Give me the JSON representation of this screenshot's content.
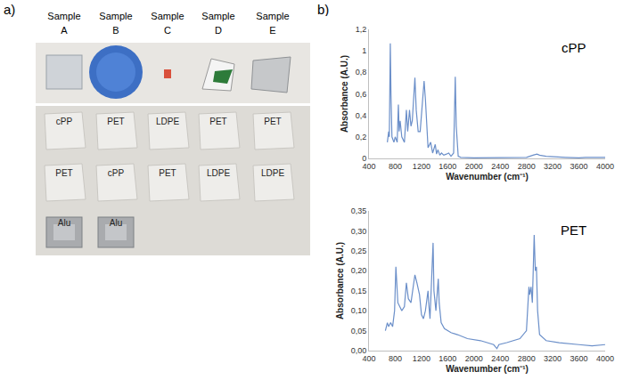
{
  "photo": {
    "panel": "a)",
    "samples": [
      {
        "header": "Sample",
        "id": "A",
        "items": [
          "cPP",
          "PET",
          "Alu"
        ]
      },
      {
        "header": "Sample",
        "id": "B",
        "items": [
          "PET",
          "cPP",
          "Alu"
        ]
      },
      {
        "header": "Sample",
        "id": "C",
        "items": [
          "LDPE",
          "PET"
        ]
      },
      {
        "header": "Sample",
        "id": "D",
        "items": [
          "PET",
          "LDPE"
        ]
      },
      {
        "header": "Sample",
        "id": "E",
        "items": [
          "PET",
          "LDPE"
        ]
      }
    ]
  },
  "panel_b": "b)",
  "chart_data": [
    {
      "type": "line",
      "annotation": "cPP",
      "color": "#6b8fc9",
      "grid": false,
      "x_label": "Wavenumber (cm⁻¹)",
      "y_label": "Absorbance (A.U.)",
      "x": [
        680,
        700,
        710,
        725,
        735,
        750,
        780,
        800,
        830,
        848,
        860,
        875,
        900,
        940,
        970,
        990,
        1018,
        1040,
        1060,
        1080,
        1100,
        1120,
        1150,
        1180,
        1210,
        1240,
        1260,
        1280,
        1300,
        1340,
        1370,
        1410,
        1430,
        1450,
        1480,
        1505,
        1540,
        1580,
        1615,
        1650,
        1690,
        1715,
        1730,
        1760,
        1800,
        2000,
        2400,
        2800,
        2900,
        2960,
        3000,
        3100,
        3400,
        3600,
        3700,
        4000
      ],
      "values": [
        0.15,
        0.25,
        0.2,
        1.07,
        0.6,
        0.2,
        0.15,
        0.2,
        0.15,
        0.5,
        0.25,
        0.35,
        0.2,
        0.15,
        0.45,
        0.25,
        0.45,
        0.3,
        0.35,
        0.55,
        0.75,
        0.45,
        0.25,
        0.25,
        0.5,
        0.72,
        0.55,
        0.3,
        0.1,
        0.15,
        0.05,
        0.13,
        0.04,
        0.08,
        0.03,
        0.05,
        0.03,
        0.04,
        0.05,
        0.02,
        0.05,
        0.76,
        0.3,
        0.02,
        0.01,
        0.005,
        0.005,
        0.01,
        0.03,
        0.04,
        0.03,
        0.02,
        0.01,
        0.005,
        0.01,
        0.01
      ],
      "xlim": [
        400,
        4000
      ],
      "xticks": [
        400,
        800,
        1200,
        1600,
        2000,
        2400,
        2800,
        3200,
        3600,
        4000
      ],
      "ylim": [
        0,
        1.2
      ],
      "yticks": [
        0,
        {
          "value": 0.2,
          "label": "0,2"
        },
        {
          "value": 0.4,
          "label": "0,4"
        },
        {
          "value": 0.6,
          "label": "0,6"
        },
        {
          "value": 0.8,
          "label": "0,8"
        },
        1,
        {
          "value": 1.2,
          "label": "1,2"
        }
      ]
    },
    {
      "type": "line",
      "annotation": "PET",
      "color": "#6b8fc9",
      "grid": false,
      "x_label": "Wavenumber (cm⁻¹)",
      "y_label": "Absorbance (A.U.)",
      "x": [
        650,
        680,
        700,
        730,
        760,
        790,
        810,
        830,
        840,
        900,
        940,
        970,
        1000,
        1040,
        1100,
        1130,
        1150,
        1170,
        1200,
        1230,
        1260,
        1300,
        1310,
        1330,
        1377,
        1390,
        1420,
        1456,
        1470,
        1500,
        1550,
        1650,
        1750,
        1900,
        2100,
        2300,
        2350,
        2380,
        2500,
        2700,
        2800,
        2838,
        2850,
        2870,
        2890,
        2918,
        2935,
        2952,
        2970,
        3000,
        3100,
        3300,
        3600,
        3800,
        4000
      ],
      "values": [
        0.05,
        0.07,
        0.06,
        0.07,
        0.06,
        0.1,
        0.21,
        0.14,
        0.12,
        0.1,
        0.11,
        0.17,
        0.13,
        0.12,
        0.19,
        0.17,
        0.15,
        0.14,
        0.09,
        0.08,
        0.1,
        0.15,
        0.12,
        0.08,
        0.27,
        0.15,
        0.1,
        0.18,
        0.12,
        0.07,
        0.055,
        0.045,
        0.04,
        0.03,
        0.025,
        0.015,
        0.005,
        0.015,
        0.02,
        0.03,
        0.05,
        0.16,
        0.14,
        0.16,
        0.12,
        0.29,
        0.2,
        0.21,
        0.1,
        0.04,
        0.025,
        0.02,
        0.015,
        0.012,
        0.015
      ],
      "xlim": [
        400,
        4000
      ],
      "xticks": [
        400,
        800,
        1200,
        1600,
        2000,
        2400,
        2800,
        3200,
        3600,
        4000
      ],
      "ylim": [
        0,
        0.35
      ],
      "yticks": [
        {
          "value": 0,
          "label": "0,00"
        },
        {
          "value": 0.05,
          "label": "0,05"
        },
        {
          "value": 0.1,
          "label": "0,10"
        },
        {
          "value": 0.15,
          "label": "0,15"
        },
        {
          "value": 0.2,
          "label": "0,20"
        },
        {
          "value": 0.25,
          "label": "0,25"
        },
        {
          "value": 0.3,
          "label": "0,30"
        },
        {
          "value": 0.35,
          "label": "0,35"
        }
      ]
    }
  ]
}
